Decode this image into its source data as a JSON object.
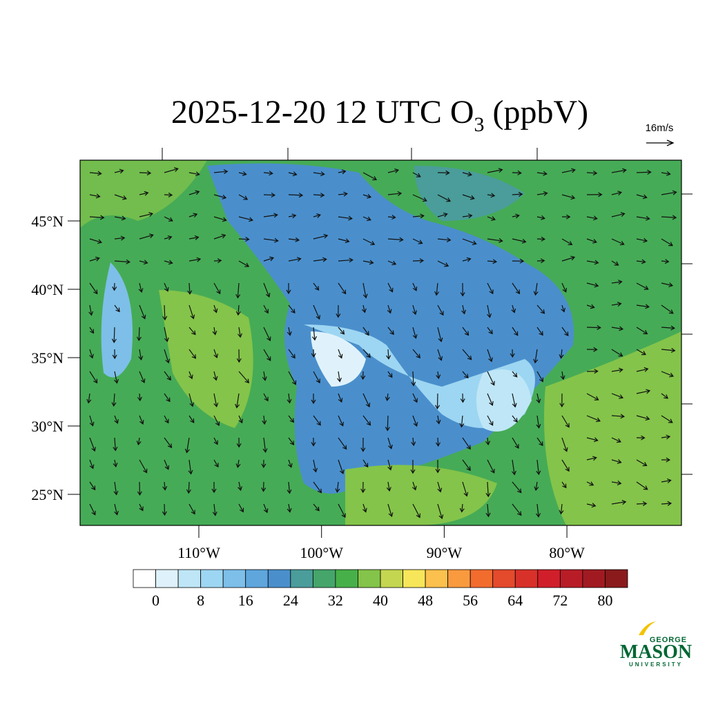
{
  "title": {
    "main": "2025-12-20 12 UTC O",
    "subscript": "3",
    "suffix": " (ppbV)"
  },
  "wind_legend": "16m/s",
  "map": {
    "lat_ticks": [
      {
        "value": 45,
        "label": "45°N"
      },
      {
        "value": 40,
        "label": "40°N"
      },
      {
        "value": 35,
        "label": "35°N"
      },
      {
        "value": 30,
        "label": "30°N"
      },
      {
        "value": 25,
        "label": "25°N"
      }
    ],
    "lon_ticks": [
      {
        "value": -110,
        "label": "110°W"
      },
      {
        "value": -100,
        "label": "100°W"
      },
      {
        "value": -90,
        "label": "90°W"
      },
      {
        "value": -80,
        "label": "80°W"
      }
    ]
  },
  "colorbar": {
    "ticks": [
      0,
      8,
      16,
      24,
      32,
      40,
      48,
      56,
      64,
      72,
      80
    ],
    "colors": [
      "#ffffff",
      "#dff2fb",
      "#bfe6f7",
      "#9dd6f2",
      "#7dbfe8",
      "#5ea6dc",
      "#4a8fcc",
      "#4a9d9a",
      "#45a56b",
      "#47b049",
      "#84c44a",
      "#c4d650",
      "#f7e659",
      "#fbc04d",
      "#f99a3f",
      "#f26c2e",
      "#e44a2c",
      "#d8312a",
      "#d01f2a",
      "#b81d27",
      "#a11a22",
      "#8a1a1c"
    ]
  },
  "logo": {
    "top": "GEORGE",
    "main": "MASON",
    "bottom": "UNIVERSITY"
  }
}
